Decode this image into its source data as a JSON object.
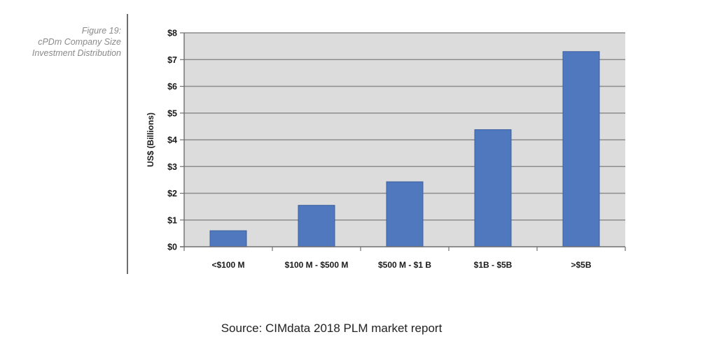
{
  "figure_caption": {
    "line1": "Figure 19:",
    "line2": "cPDm Company Size",
    "line3": "Investment Distribution"
  },
  "source_text": "Source: CIMdata 2018 PLM market report",
  "chart_data": {
    "type": "bar",
    "title": "",
    "xlabel": "",
    "ylabel": "US$ (Billions)",
    "categories": [
      "<$100 M",
      "$100 M - $500 M",
      "$500 M - $1 B",
      "$1B - $5B",
      ">$5B"
    ],
    "values": [
      0.6,
      1.55,
      2.43,
      4.38,
      7.3
    ],
    "ylim": [
      0,
      8
    ],
    "yticks": [
      0,
      1,
      2,
      3,
      4,
      5,
      6,
      7,
      8
    ],
    "ytick_labels": [
      "$0",
      "$1",
      "$2",
      "$3",
      "$4",
      "$5",
      "$6",
      "$7",
      "$8"
    ],
    "grid": true,
    "legend": "none",
    "colors": {
      "bar": "#4f78be",
      "bar_edge": "#3b5f9e",
      "plot_background": "#dcdcdc",
      "gridline": "#8c8c8c"
    }
  }
}
